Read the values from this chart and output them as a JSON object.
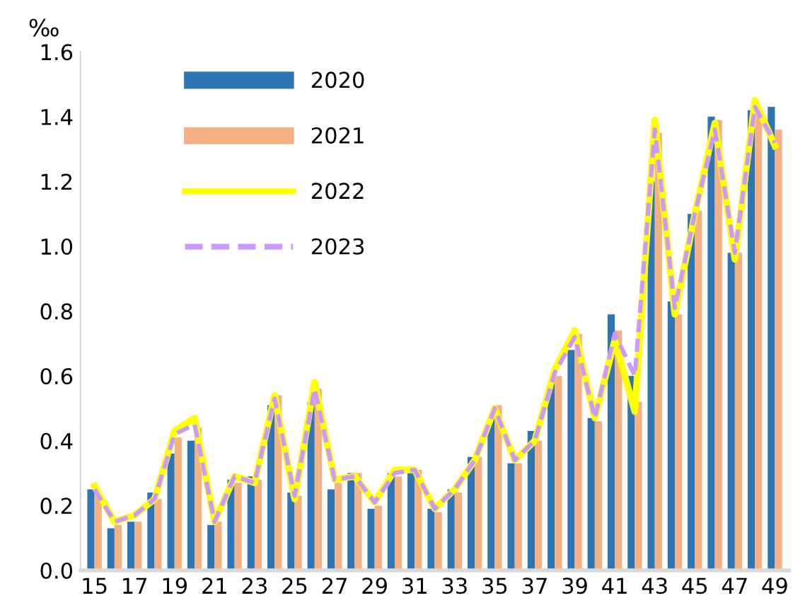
{
  "chart_data": {
    "type": "bar",
    "ylabel": "‰",
    "categories": [
      "15",
      null,
      "17",
      null,
      "19",
      null,
      "21",
      null,
      "23",
      null,
      "25",
      null,
      "27",
      null,
      "29",
      null,
      "31",
      null,
      "33",
      null,
      "35",
      null,
      "37",
      null,
      "39",
      null,
      "41",
      null,
      "43",
      null,
      "45",
      null,
      "47",
      null,
      "49"
    ],
    "series": [
      {
        "name": "2020",
        "color": "#2e75b6",
        "values": [
          0.25,
          0.13,
          0.15,
          0.24,
          0.36,
          0.4,
          0.14,
          0.28,
          0.29,
          0.51,
          0.24,
          0.52,
          0.25,
          0.3,
          0.19,
          0.3,
          0.3,
          0.19,
          0.25,
          0.35,
          0.47,
          0.33,
          0.43,
          0.58,
          0.68,
          0.47,
          0.79,
          0.6,
          1.2,
          0.83,
          1.1,
          1.4,
          0.98,
          1.42,
          1.43
        ]
      },
      {
        "name": "2021",
        "color": "#f4b183",
        "values": [
          0.24,
          0.14,
          0.15,
          0.22,
          0.41,
          0.44,
          0.15,
          0.27,
          0.28,
          0.54,
          0.23,
          0.56,
          0.27,
          0.3,
          0.2,
          0.29,
          0.31,
          0.18,
          0.24,
          0.35,
          0.51,
          0.33,
          0.4,
          0.6,
          0.73,
          0.46,
          0.74,
          0.52,
          1.35,
          0.79,
          1.11,
          1.39,
          0.98,
          1.41,
          1.36
        ]
      },
      {
        "name": "2022",
        "color": "#ffff00",
        "type": "line",
        "line_style": "solid",
        "values": [
          0.26,
          0.15,
          0.17,
          0.22,
          0.43,
          0.47,
          0.15,
          0.29,
          0.27,
          0.54,
          0.22,
          0.58,
          0.28,
          0.29,
          0.21,
          0.31,
          0.31,
          0.19,
          0.25,
          0.34,
          0.5,
          0.34,
          0.4,
          0.62,
          0.74,
          0.47,
          0.71,
          0.49,
          1.39,
          0.79,
          1.1,
          1.38,
          0.96,
          1.45,
          1.31
        ]
      },
      {
        "name": "2023",
        "color": "#cc99ff",
        "type": "line",
        "line_style": "dashed",
        "values": [
          0.25,
          0.15,
          0.17,
          0.22,
          0.42,
          0.45,
          0.15,
          0.29,
          0.27,
          0.53,
          0.23,
          0.56,
          0.28,
          0.29,
          0.21,
          0.3,
          0.31,
          0.19,
          0.25,
          0.34,
          0.5,
          0.34,
          0.4,
          0.61,
          0.72,
          0.47,
          0.73,
          0.6,
          1.36,
          0.81,
          1.1,
          1.36,
          0.98,
          1.43,
          1.32
        ]
      }
    ],
    "ylim": [
      0,
      1.6
    ],
    "yticks": [
      {
        "value": 0,
        "label": "0.0"
      },
      {
        "value": 0.2,
        "label": "0.2"
      },
      {
        "value": 0.4,
        "label": "0.4"
      },
      {
        "value": 0.6,
        "label": "0.6"
      },
      {
        "value": 0.8,
        "label": "0.8"
      },
      {
        "value": 1.0,
        "label": "1.0"
      },
      {
        "value": 1.2,
        "label": "1.2"
      },
      {
        "value": 1.4,
        "label": "1.4"
      },
      {
        "value": 1.6,
        "label": "1.6"
      }
    ],
    "grid": false,
    "legend": "top left"
  }
}
